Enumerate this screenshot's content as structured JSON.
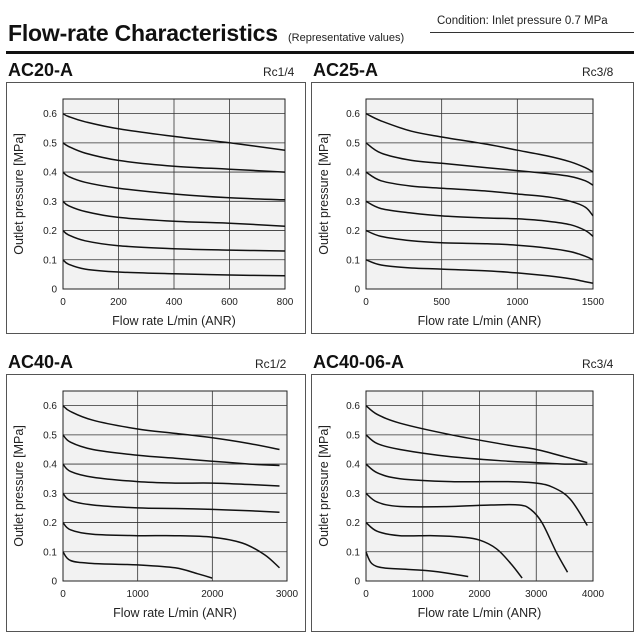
{
  "header": {
    "condition": "Condition: Inlet pressure 0.7 MPa",
    "title": "Flow-rate Characteristics",
    "subtitle": "(Representative values)"
  },
  "chart_data": [
    {
      "type": "line",
      "model": "AC20-A",
      "port": "Rc1/4",
      "xlabel": "Flow rate L/min (ANR)",
      "ylabel": "Outlet pressure [MPa]",
      "xlim": [
        0,
        800
      ],
      "ylim": [
        0,
        0.65
      ],
      "xticks": [
        "0",
        "200",
        "400",
        "600",
        "800"
      ],
      "yticks": [
        "0",
        "0.1",
        "0.2",
        "0.3",
        "0.4",
        "0.5",
        "0.6"
      ],
      "grid": true,
      "series": [
        {
          "x": [
            0,
            20,
            80,
            200,
            400,
            600,
            800
          ],
          "y": [
            0.6,
            0.59,
            0.572,
            0.548,
            0.522,
            0.5,
            0.475
          ]
        },
        {
          "x": [
            0,
            20,
            80,
            200,
            400,
            600,
            800
          ],
          "y": [
            0.5,
            0.488,
            0.465,
            0.44,
            0.42,
            0.41,
            0.4
          ]
        },
        {
          "x": [
            0,
            20,
            80,
            200,
            400,
            600,
            800
          ],
          "y": [
            0.4,
            0.385,
            0.365,
            0.345,
            0.325,
            0.312,
            0.305
          ]
        },
        {
          "x": [
            0,
            20,
            80,
            200,
            400,
            600,
            800
          ],
          "y": [
            0.3,
            0.285,
            0.265,
            0.245,
            0.232,
            0.225,
            0.215
          ]
        },
        {
          "x": [
            0,
            20,
            80,
            200,
            400,
            600,
            800
          ],
          "y": [
            0.2,
            0.185,
            0.165,
            0.148,
            0.138,
            0.133,
            0.13
          ]
        },
        {
          "x": [
            0,
            20,
            80,
            200,
            400,
            600,
            800
          ],
          "y": [
            0.1,
            0.085,
            0.068,
            0.058,
            0.052,
            0.048,
            0.045
          ]
        }
      ]
    },
    {
      "type": "line",
      "model": "AC25-A",
      "port": "Rc3/8",
      "xlabel": "Flow rate L/min (ANR)",
      "ylabel": "Outlet pressure [MPa]",
      "xlim": [
        0,
        1500
      ],
      "ylim": [
        0,
        0.65
      ],
      "xticks": [
        "0",
        "500",
        "1000",
        "1500"
      ],
      "yticks": [
        "0",
        "0.1",
        "0.2",
        "0.3",
        "0.4",
        "0.5",
        "0.6"
      ],
      "grid": true,
      "series": [
        {
          "x": [
            0,
            100,
            300,
            500,
            800,
            1000,
            1200,
            1350,
            1450,
            1500
          ],
          "y": [
            0.6,
            0.575,
            0.54,
            0.52,
            0.495,
            0.475,
            0.455,
            0.435,
            0.415,
            0.4
          ]
        },
        {
          "x": [
            0,
            100,
            300,
            500,
            800,
            1000,
            1200,
            1350,
            1450,
            1500
          ],
          "y": [
            0.5,
            0.465,
            0.44,
            0.43,
            0.415,
            0.405,
            0.395,
            0.385,
            0.37,
            0.355
          ]
        },
        {
          "x": [
            0,
            100,
            300,
            500,
            800,
            1000,
            1200,
            1350,
            1450,
            1500
          ],
          "y": [
            0.4,
            0.37,
            0.352,
            0.345,
            0.335,
            0.325,
            0.315,
            0.3,
            0.28,
            0.25
          ]
        },
        {
          "x": [
            0,
            100,
            300,
            500,
            800,
            1000,
            1200,
            1350,
            1450,
            1500
          ],
          "y": [
            0.3,
            0.275,
            0.26,
            0.25,
            0.243,
            0.24,
            0.232,
            0.22,
            0.2,
            0.18
          ]
        },
        {
          "x": [
            0,
            100,
            300,
            500,
            800,
            1000,
            1200,
            1350,
            1450,
            1500
          ],
          "y": [
            0.2,
            0.18,
            0.165,
            0.158,
            0.155,
            0.15,
            0.14,
            0.128,
            0.112,
            0.1
          ]
        },
        {
          "x": [
            0,
            100,
            300,
            500,
            800,
            1000,
            1200,
            1350,
            1450,
            1500
          ],
          "y": [
            0.1,
            0.082,
            0.072,
            0.068,
            0.062,
            0.055,
            0.045,
            0.035,
            0.025,
            0.02
          ]
        }
      ]
    },
    {
      "type": "line",
      "model": "AC40-A",
      "port": "Rc1/2",
      "xlabel": "Flow rate L/min (ANR)",
      "ylabel": "Outlet pressure [MPa]",
      "xlim": [
        0,
        3000
      ],
      "ylim": [
        0,
        0.65
      ],
      "xticks": [
        "0",
        "1000",
        "2000",
        "3000"
      ],
      "yticks": [
        "0",
        "0.1",
        "0.2",
        "0.3",
        "0.4",
        "0.5",
        "0.6"
      ],
      "grid": true,
      "series": [
        {
          "x": [
            0,
            100,
            400,
            1000,
            1500,
            2000,
            2500,
            2900
          ],
          "y": [
            0.6,
            0.58,
            0.55,
            0.52,
            0.505,
            0.49,
            0.47,
            0.45
          ]
        },
        {
          "x": [
            0,
            100,
            400,
            1000,
            1500,
            2000,
            2500,
            2900
          ],
          "y": [
            0.5,
            0.475,
            0.45,
            0.43,
            0.42,
            0.41,
            0.4,
            0.395
          ]
        },
        {
          "x": [
            0,
            100,
            400,
            1000,
            1500,
            2000,
            2500,
            2900
          ],
          "y": [
            0.4,
            0.375,
            0.355,
            0.34,
            0.335,
            0.335,
            0.33,
            0.325
          ]
        },
        {
          "x": [
            0,
            100,
            400,
            1000,
            1500,
            2000,
            2500,
            2900
          ],
          "y": [
            0.3,
            0.275,
            0.26,
            0.25,
            0.248,
            0.245,
            0.24,
            0.235
          ]
        },
        {
          "x": [
            0,
            100,
            400,
            1000,
            1500,
            2000,
            2400,
            2700,
            2900
          ],
          "y": [
            0.2,
            0.175,
            0.16,
            0.155,
            0.155,
            0.15,
            0.13,
            0.09,
            0.045
          ]
        },
        {
          "x": [
            0,
            100,
            400,
            1000,
            1500,
            1800,
            2000
          ],
          "y": [
            0.1,
            0.07,
            0.06,
            0.055,
            0.045,
            0.025,
            0.01
          ]
        }
      ]
    },
    {
      "type": "line",
      "model": "AC40-06-A",
      "port": "Rc3/4",
      "xlabel": "Flow rate L/min (ANR)",
      "ylabel": "Outlet pressure [MPa]",
      "xlim": [
        0,
        4000
      ],
      "ylim": [
        0,
        0.65
      ],
      "xticks": [
        "0",
        "1000",
        "2000",
        "3000",
        "4000"
      ],
      "yticks": [
        "0",
        "0.1",
        "0.2",
        "0.3",
        "0.4",
        "0.5",
        "0.6"
      ],
      "grid": true,
      "series": [
        {
          "x": [
            0,
            200,
            600,
            1500,
            2500,
            3000,
            3500,
            3900
          ],
          "y": [
            0.6,
            0.57,
            0.54,
            0.5,
            0.465,
            0.45,
            0.425,
            0.405
          ]
        },
        {
          "x": [
            0,
            200,
            600,
            1500,
            2500,
            3000,
            3500,
            3900
          ],
          "y": [
            0.5,
            0.47,
            0.45,
            0.425,
            0.41,
            0.405,
            0.4,
            0.4
          ]
        },
        {
          "x": [
            0,
            200,
            600,
            1500,
            2500,
            3000,
            3300,
            3600,
            3900
          ],
          "y": [
            0.4,
            0.37,
            0.35,
            0.34,
            0.34,
            0.335,
            0.32,
            0.28,
            0.19
          ]
        },
        {
          "x": [
            0,
            200,
            600,
            1500,
            2200,
            2700,
            2900,
            3100,
            3350,
            3550
          ],
          "y": [
            0.3,
            0.27,
            0.255,
            0.255,
            0.26,
            0.26,
            0.245,
            0.2,
            0.1,
            0.03
          ]
        },
        {
          "x": [
            0,
            200,
            600,
            1200,
            1700,
            2000,
            2300,
            2550,
            2750
          ],
          "y": [
            0.2,
            0.17,
            0.155,
            0.155,
            0.15,
            0.14,
            0.11,
            0.06,
            0.01
          ]
        },
        {
          "x": [
            0,
            100,
            300,
            700,
            1100,
            1500,
            1800
          ],
          "y": [
            0.1,
            0.06,
            0.045,
            0.04,
            0.035,
            0.025,
            0.015
          ]
        }
      ]
    }
  ]
}
